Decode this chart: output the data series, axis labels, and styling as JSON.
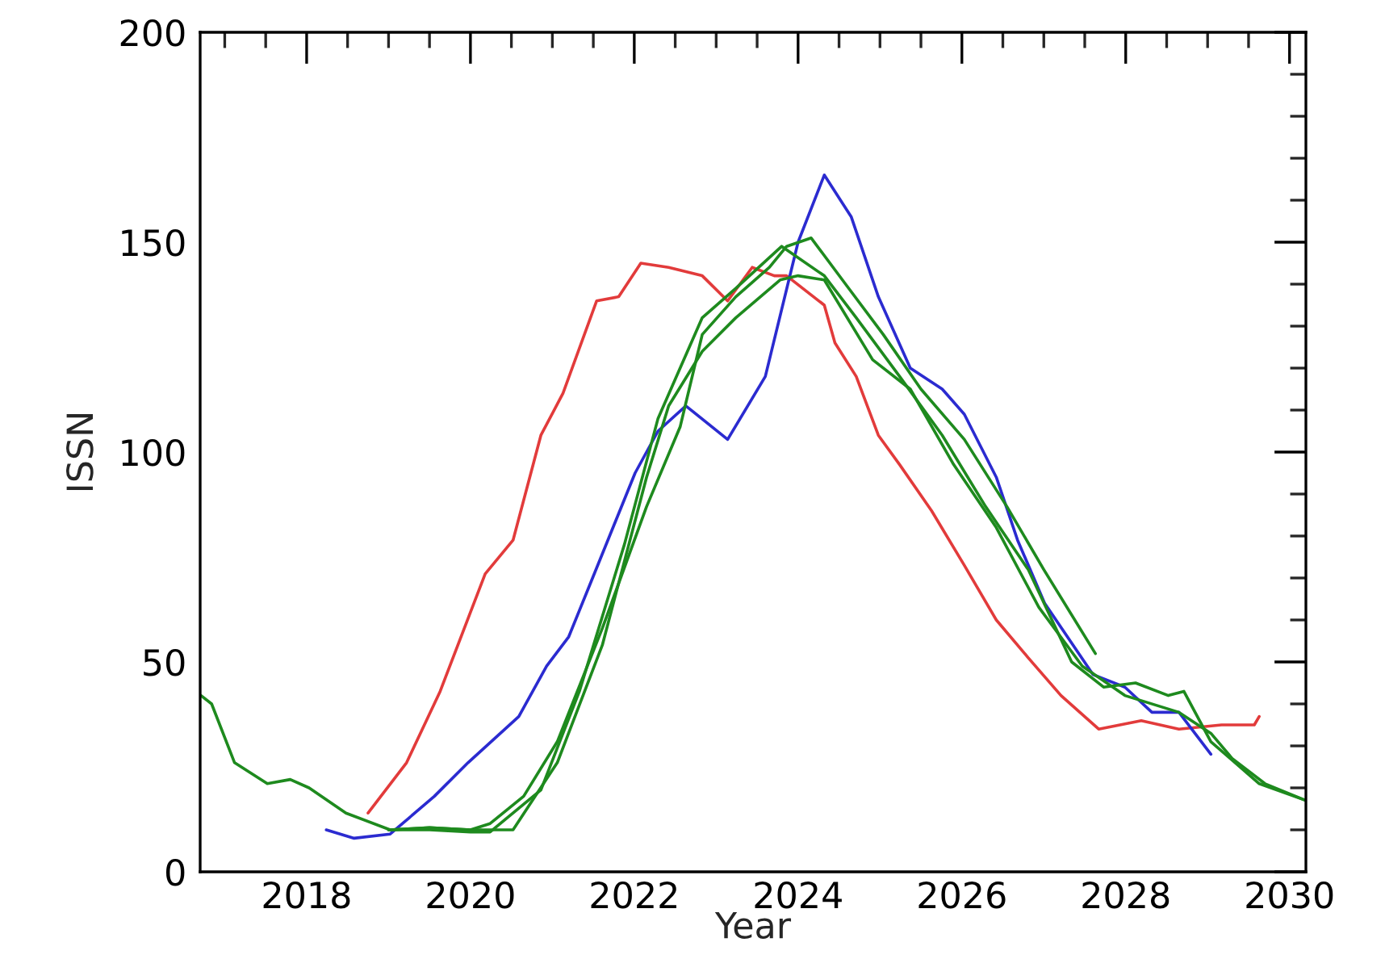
{
  "chart_data": {
    "type": "line",
    "xlabel": "Year",
    "ylabel": "ISSN",
    "xlim": [
      2016.7,
      2030.2
    ],
    "ylim": [
      0,
      200
    ],
    "xticks": [
      {
        "value": 2017,
        "label": null
      },
      {
        "value": 2017.5,
        "label": null
      },
      2018,
      {
        "value": 2018.5,
        "label": null
      },
      {
        "value": 2019,
        "label": null
      },
      {
        "value": 2019.5,
        "label": null
      },
      2020,
      {
        "value": 2020.5,
        "label": null
      },
      {
        "value": 2021,
        "label": null
      },
      {
        "value": 2021.5,
        "label": null
      },
      2022,
      {
        "value": 2022.5,
        "label": null
      },
      {
        "value": 2023,
        "label": null
      },
      {
        "value": 2023.5,
        "label": null
      },
      2024,
      {
        "value": 2024.5,
        "label": null
      },
      {
        "value": 2025,
        "label": null
      },
      {
        "value": 2025.5,
        "label": null
      },
      2026,
      {
        "value": 2026.5,
        "label": null
      },
      {
        "value": 2027,
        "label": null
      },
      {
        "value": 2027.5,
        "label": null
      },
      2028,
      {
        "value": 2028.5,
        "label": null
      },
      {
        "value": 2029,
        "label": null
      },
      {
        "value": 2029.5,
        "label": null
      },
      2030
    ],
    "yticks": [
      0,
      {
        "value": 10,
        "label": null
      },
      {
        "value": 20,
        "label": null
      },
      {
        "value": 30,
        "label": null
      },
      {
        "value": 40,
        "label": null
      },
      50,
      {
        "value": 60,
        "label": null
      },
      {
        "value": 70,
        "label": null
      },
      {
        "value": 80,
        "label": null
      },
      {
        "value": 90,
        "label": null
      },
      100,
      {
        "value": 110,
        "label": null
      },
      {
        "value": 120,
        "label": null
      },
      {
        "value": 130,
        "label": null
      },
      {
        "value": 140,
        "label": null
      },
      150,
      {
        "value": 160,
        "label": null
      },
      {
        "value": 170,
        "label": null
      },
      {
        "value": 180,
        "label": null
      },
      {
        "value": 190,
        "label": null
      },
      200
    ],
    "grid": false,
    "legend": false,
    "marker": "none",
    "line_style": "solid",
    "series": [
      {
        "color": "#e23b3b",
        "x": [
          2018.75,
          2019.22,
          2019.63,
          2020.18,
          2020.52,
          2020.86,
          2021.13,
          2021.54,
          2021.81,
          2022.08,
          2022.42,
          2022.83,
          2023.14,
          2023.44,
          2023.71,
          2023.86,
          2024.32,
          2024.45,
          2024.71,
          2024.98,
          2025.24,
          2025.63,
          2026.03,
          2026.42,
          2026.81,
          2027.21,
          2027.67,
          2028.19,
          2028.65,
          2029.17,
          2029.57,
          2029.63
        ],
        "values": [
          14,
          26,
          43,
          71,
          79,
          104,
          114,
          136,
          137,
          145,
          144,
          142,
          136,
          144,
          142,
          142,
          135,
          126,
          118,
          104,
          97,
          86,
          73,
          60,
          51,
          42,
          34,
          36,
          34,
          35,
          35,
          37
        ]
      },
      {
        "color": "#2b2bd0",
        "x": [
          2018.24,
          2018.58,
          2019.02,
          2019.56,
          2019.97,
          2020.59,
          2020.93,
          2021.2,
          2021.47,
          2022.01,
          2022.29,
          2022.63,
          2023.14,
          2023.6,
          2024.0,
          2024.32,
          2024.65,
          2024.98,
          2025.37,
          2025.76,
          2026.03,
          2026.42,
          2026.68,
          2027.01,
          2027.6,
          2027.99,
          2028.32,
          2028.65,
          2029.04
        ],
        "values": [
          10,
          8,
          9,
          18,
          26,
          37,
          49,
          56,
          69,
          95,
          105,
          111,
          103,
          118,
          150,
          166,
          156,
          137,
          120,
          115,
          109,
          94,
          79,
          64,
          47,
          44,
          38,
          38,
          28
        ]
      },
      {
        "color": "#1e8a1e",
        "x": [
          2016.71,
          2016.84,
          2017.12,
          2017.52,
          2017.8,
          2018.03,
          2018.48,
          2019.02,
          2019.5,
          2020.0,
          2020.24,
          2020.65,
          2021.06,
          2021.61,
          2022.15,
          2022.56,
          2022.83,
          2023.24,
          2023.65,
          2023.86,
          2024.16,
          2024.58,
          2025.04,
          2025.5,
          2026.03,
          2026.55,
          2027.0,
          2027.63
        ],
        "values": [
          42,
          40,
          26,
          21,
          22,
          20,
          14,
          10,
          10.5,
          10,
          11.5,
          18,
          31,
          58,
          87,
          106,
          128,
          137,
          144,
          149,
          151,
          140,
          128,
          115,
          103,
          87,
          72,
          52
        ]
      },
      {
        "color": "#1e8a1e",
        "x": [
          2019.0,
          2019.5,
          2020.0,
          2020.52,
          2021.06,
          2021.61,
          2022.15,
          2022.42,
          2022.83,
          2023.24,
          2023.78,
          2024.0,
          2024.32,
          2024.91,
          2025.37,
          2025.9,
          2026.42,
          2026.94,
          2027.47,
          2027.99,
          2028.65,
          2029.04,
          2029.3,
          2029.7,
          2030.2
        ],
        "values": [
          10,
          10.5,
          10,
          10,
          26,
          54,
          94,
          111,
          124,
          132,
          141,
          142,
          141,
          122,
          115,
          97,
          82,
          63,
          49,
          42,
          38,
          33,
          27,
          21,
          17
        ]
      },
      {
        "color": "#1e8a1e",
        "x": [
          2019.0,
          2019.5,
          2020.0,
          2020.24,
          2020.86,
          2021.33,
          2021.88,
          2022.29,
          2022.83,
          2023.24,
          2023.8,
          2024.32,
          2024.71,
          2025.24,
          2025.76,
          2026.29,
          2026.81,
          2027.34,
          2027.73,
          2028.12,
          2028.52,
          2028.71,
          2029.04,
          2029.63,
          2030.2
        ],
        "values": [
          10,
          10,
          9.5,
          9.5,
          19.5,
          43,
          78,
          108,
          132,
          139,
          149,
          142,
          132,
          118,
          104,
          87,
          72,
          50,
          44,
          45,
          42,
          43,
          31,
          21,
          17
        ]
      }
    ]
  }
}
